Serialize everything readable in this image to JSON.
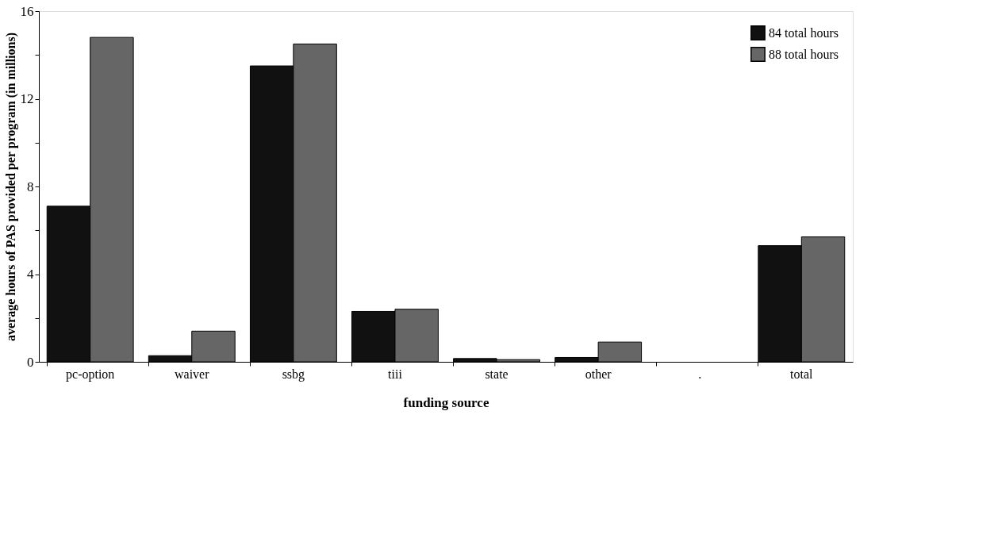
{
  "chart_data": {
    "type": "bar",
    "xlabel": "funding source",
    "ylabel": "average hours of PAS provided per program (in millions)",
    "categories": [
      "pc-option",
      "waiver",
      "ssbg",
      "tiii",
      "state",
      "other",
      ".",
      "total"
    ],
    "series": [
      {
        "name": "84 total hours",
        "color": "#111111",
        "values": [
          7.1,
          0.28,
          13.5,
          2.3,
          0.15,
          0.2,
          null,
          5.3
        ]
      },
      {
        "name": "88 total hours",
        "color": "#666666",
        "values": [
          14.8,
          1.4,
          14.5,
          2.4,
          0.1,
          0.9,
          null,
          5.7
        ]
      }
    ],
    "ylim": [
      0,
      16
    ],
    "yticks": [
      0,
      {
        "value": 2,
        "label": null
      },
      4,
      {
        "value": 6,
        "label": null
      },
      8,
      {
        "value": 10,
        "label": null
      },
      12,
      {
        "value": 14,
        "label": null
      },
      16
    ],
    "grid": false,
    "legend": "top right"
  }
}
